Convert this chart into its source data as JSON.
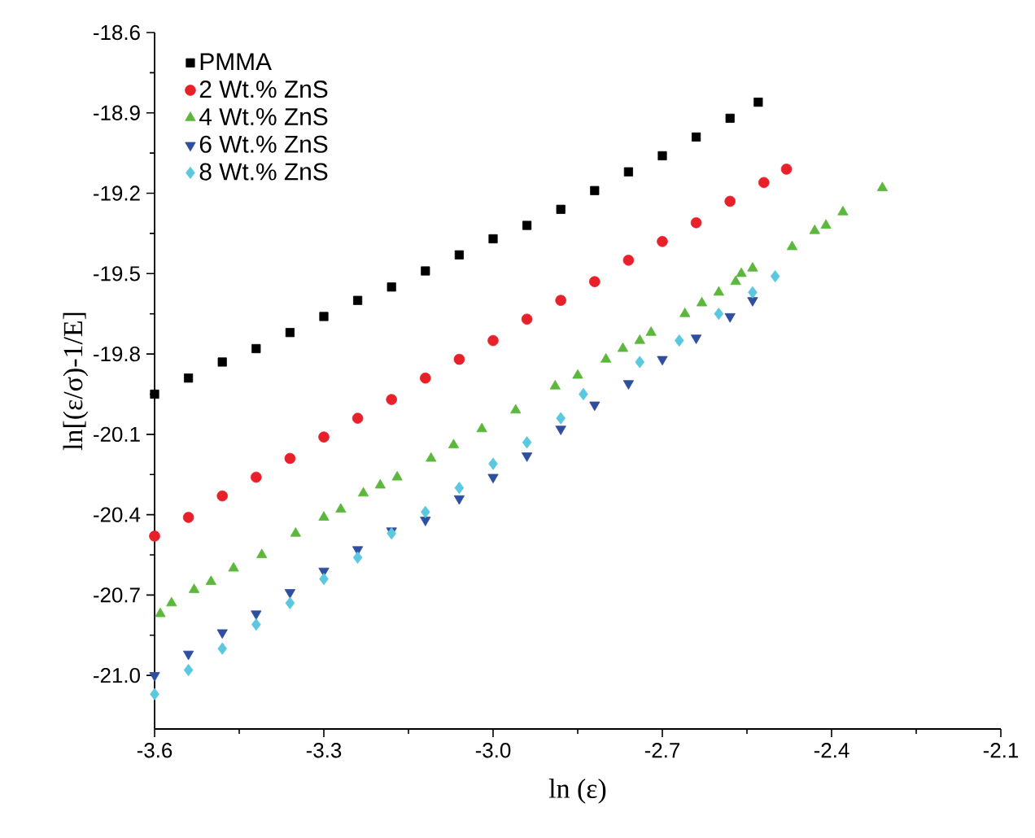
{
  "chart_data": {
    "type": "scatter",
    "xlabel": "ln (ε)",
    "ylabel": "ln[(ε/σ)-1/E]",
    "xlim": [
      -3.6,
      -2.1
    ],
    "xticks": [
      -3.6,
      -3.3,
      {
        "value": -3.0,
        "label": "-3.0"
      },
      -2.7,
      -2.4,
      -2.1
    ],
    "ylim": [
      -21.2,
      -18.6
    ],
    "yticks": [
      {
        "value": -21.0,
        "label": "-21.0"
      },
      -20.7,
      -20.4,
      -20.1,
      -19.8,
      -19.5,
      -19.2,
      -18.9,
      -18.6
    ],
    "grid": false,
    "legend": "top left",
    "series": [
      {
        "name": "PMMA",
        "color": "#000000",
        "marker": "square",
        "x": [
          -3.6,
          -3.54,
          -3.48,
          -3.42,
          -3.36,
          -3.3,
          -3.24,
          -3.18,
          -3.12,
          -3.06,
          -3.0,
          -2.94,
          -2.88,
          -2.82,
          -2.76,
          -2.7,
          -2.64,
          -2.58,
          -2.53
        ],
        "values": [
          -19.95,
          -19.89,
          -19.83,
          -19.78,
          -19.72,
          -19.66,
          -19.6,
          -19.55,
          -19.49,
          -19.43,
          -19.37,
          -19.32,
          -19.26,
          -19.19,
          -19.12,
          -19.06,
          -18.99,
          -18.92,
          -18.86
        ]
      },
      {
        "name": "2 Wt.% ZnS",
        "color": "#e8202a",
        "marker": "circle",
        "x": [
          -3.6,
          -3.54,
          -3.48,
          -3.42,
          -3.36,
          -3.3,
          -3.24,
          -3.18,
          -3.12,
          -3.06,
          -3.0,
          -2.94,
          -2.88,
          -2.82,
          -2.76,
          -2.7,
          -2.64,
          -2.58,
          -2.52,
          -2.48
        ],
        "values": [
          -20.48,
          -20.41,
          -20.33,
          -20.26,
          -20.19,
          -20.11,
          -20.04,
          -19.97,
          -19.89,
          -19.82,
          -19.75,
          -19.67,
          -19.6,
          -19.53,
          -19.45,
          -19.38,
          -19.31,
          -19.23,
          -19.16,
          -19.11
        ]
      },
      {
        "name": "4 Wt.% ZnS",
        "color": "#5cb83c",
        "marker": "triangle",
        "x": [
          -3.59,
          -3.57,
          -3.53,
          -3.5,
          -3.46,
          -3.41,
          -3.35,
          -3.3,
          -3.27,
          -3.23,
          -3.2,
          -3.17,
          -3.11,
          -3.07,
          -3.02,
          -2.96,
          -2.89,
          -2.85,
          -2.8,
          -2.77,
          -2.74,
          -2.72,
          -2.66,
          -2.63,
          -2.6,
          -2.57,
          -2.56,
          -2.54,
          -2.47,
          -2.43,
          -2.41,
          -2.38,
          -2.31
        ],
        "values": [
          -20.77,
          -20.73,
          -20.68,
          -20.65,
          -20.6,
          -20.55,
          -20.47,
          -20.41,
          -20.38,
          -20.32,
          -20.29,
          -20.26,
          -20.19,
          -20.14,
          -20.08,
          -20.01,
          -19.92,
          -19.88,
          -19.82,
          -19.78,
          -19.75,
          -19.72,
          -19.65,
          -19.61,
          -19.57,
          -19.53,
          -19.5,
          -19.48,
          -19.4,
          -19.34,
          -19.32,
          -19.27,
          -19.18
        ]
      },
      {
        "name": "6 Wt.% ZnS",
        "color": "#2e4ea0",
        "marker": "triangle-down",
        "x": [
          -3.6,
          -3.54,
          -3.48,
          -3.42,
          -3.36,
          -3.3,
          -3.24,
          -3.18,
          -3.12,
          -3.06,
          -3.0,
          -2.94,
          -2.88,
          -2.82,
          -2.76,
          -2.7,
          -2.64,
          -2.58,
          -2.54
        ],
        "values": [
          -21.0,
          -20.92,
          -20.84,
          -20.77,
          -20.69,
          -20.61,
          -20.53,
          -20.46,
          -20.42,
          -20.34,
          -20.26,
          -20.18,
          -20.08,
          -19.99,
          -19.91,
          -19.82,
          -19.74,
          -19.66,
          -19.6
        ]
      },
      {
        "name": "8 Wt.% ZnS",
        "color": "#5bc8e0",
        "marker": "diamond",
        "x": [
          -3.6,
          -3.54,
          -3.48,
          -3.42,
          -3.36,
          -3.3,
          -3.24,
          -3.18,
          -3.12,
          -3.06,
          -3.0,
          -2.94,
          -2.88,
          -2.84,
          -2.74,
          -2.67,
          -2.6,
          -2.54,
          -2.5
        ],
        "values": [
          -21.07,
          -20.98,
          -20.9,
          -20.81,
          -20.73,
          -20.64,
          -20.56,
          -20.47,
          -20.39,
          -20.3,
          -20.21,
          -20.13,
          -20.04,
          -19.95,
          -19.83,
          -19.75,
          -19.65,
          -19.57,
          -19.51
        ]
      }
    ]
  }
}
